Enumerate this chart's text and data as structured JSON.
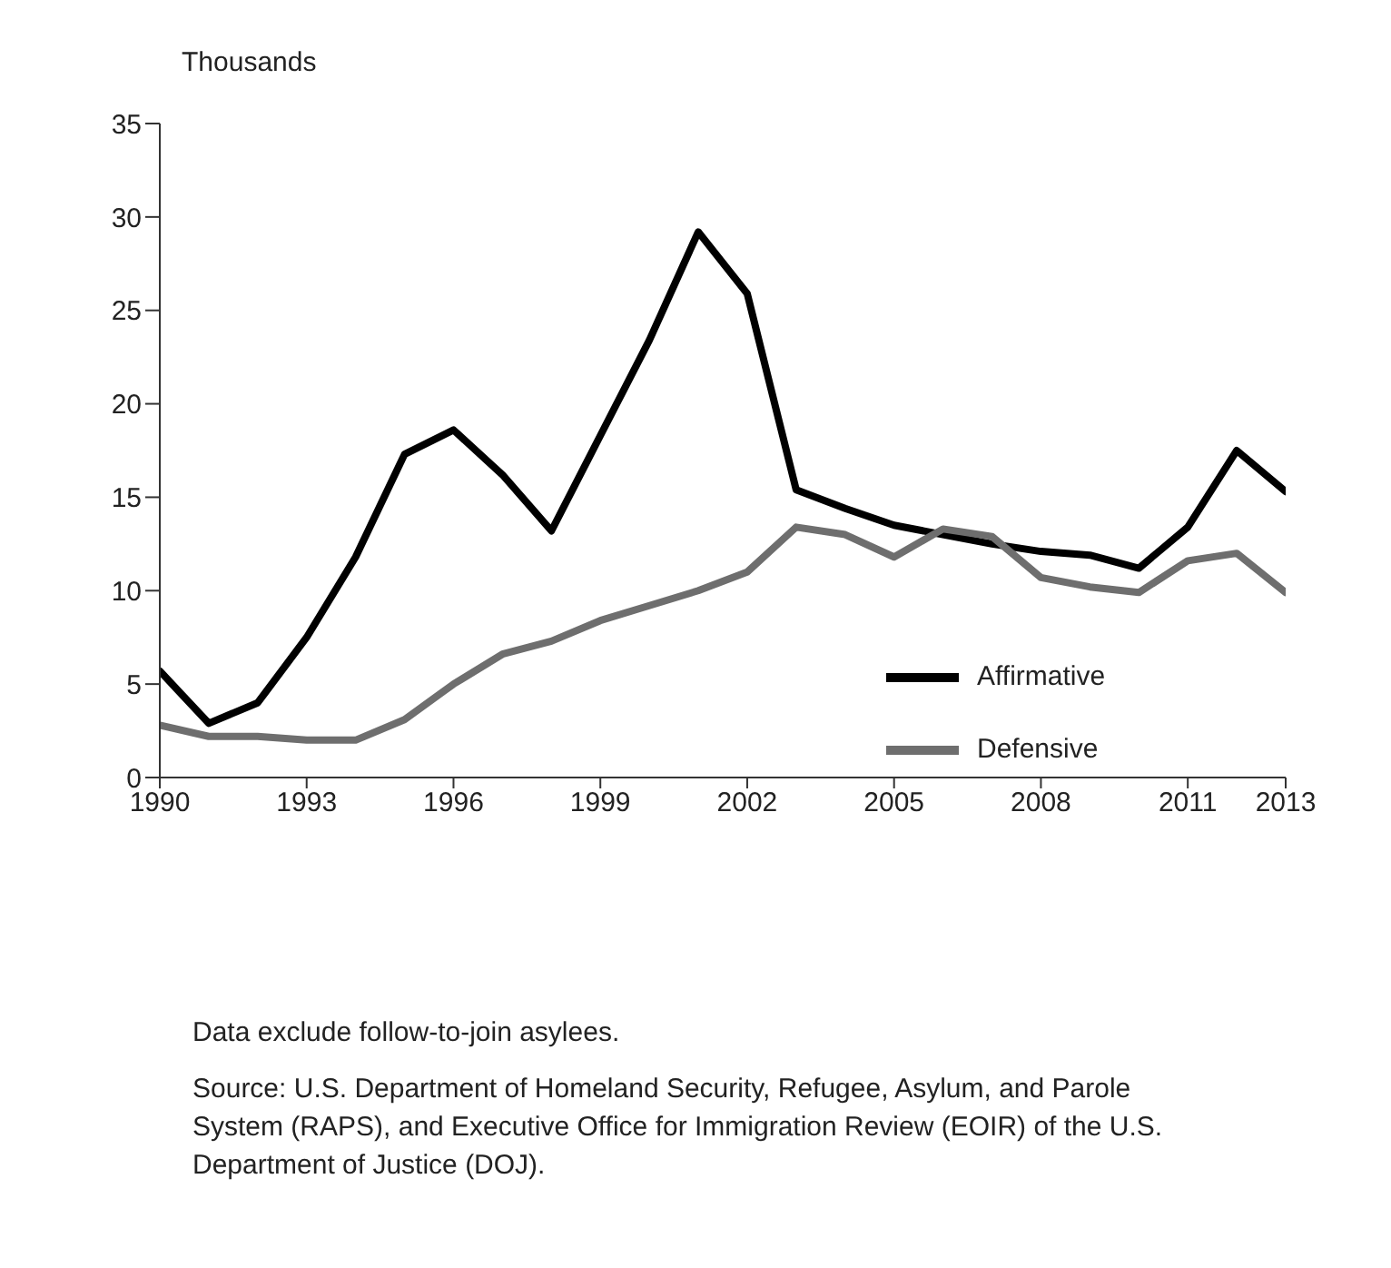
{
  "chart_data": {
    "type": "line",
    "ylabel": "Thousands",
    "x": [
      1990,
      1991,
      1992,
      1993,
      1994,
      1995,
      1996,
      1997,
      1998,
      1999,
      2000,
      2001,
      2002,
      2003,
      2004,
      2005,
      2006,
      2007,
      2008,
      2009,
      2010,
      2011,
      2012,
      2013
    ],
    "series": [
      {
        "name": "Affirmative",
        "color": "#000000",
        "values": [
          5.7,
          2.9,
          4.0,
          7.5,
          11.8,
          17.3,
          18.6,
          16.2,
          13.2,
          18.3,
          23.4,
          29.2,
          25.9,
          15.4,
          14.4,
          13.5,
          13.0,
          12.5,
          12.1,
          11.9,
          11.2,
          13.4,
          17.5,
          15.3
        ]
      },
      {
        "name": "Defensive",
        "color": "#6e6e6e",
        "values": [
          2.8,
          2.2,
          2.2,
          2.0,
          2.0,
          3.1,
          5.0,
          6.6,
          7.3,
          8.4,
          9.2,
          10.0,
          11.0,
          13.4,
          13.0,
          11.8,
          13.3,
          12.9,
          10.7,
          10.2,
          9.9,
          11.6,
          12.0,
          9.9
        ]
      }
    ],
    "xlim": [
      1990,
      2013
    ],
    "xticks": [
      1990,
      1993,
      1996,
      1999,
      2002,
      2005,
      2008,
      2011,
      2013
    ],
    "ylim": [
      0,
      35
    ],
    "yticks": [
      0,
      5,
      10,
      15,
      20,
      25,
      30,
      35
    ],
    "grid": false,
    "legend": "bottom right",
    "marker": "none",
    "line_style": "solid",
    "annotations": [
      "Data exclude follow-to-join asylees.",
      "Source: U.S. Department of Homeland Security, Refugee, Asylum, and Parole System (RAPS), and Executive Office for Immigration Review (EOIR) of the U.S. Department of Justice (DOJ)."
    ]
  }
}
